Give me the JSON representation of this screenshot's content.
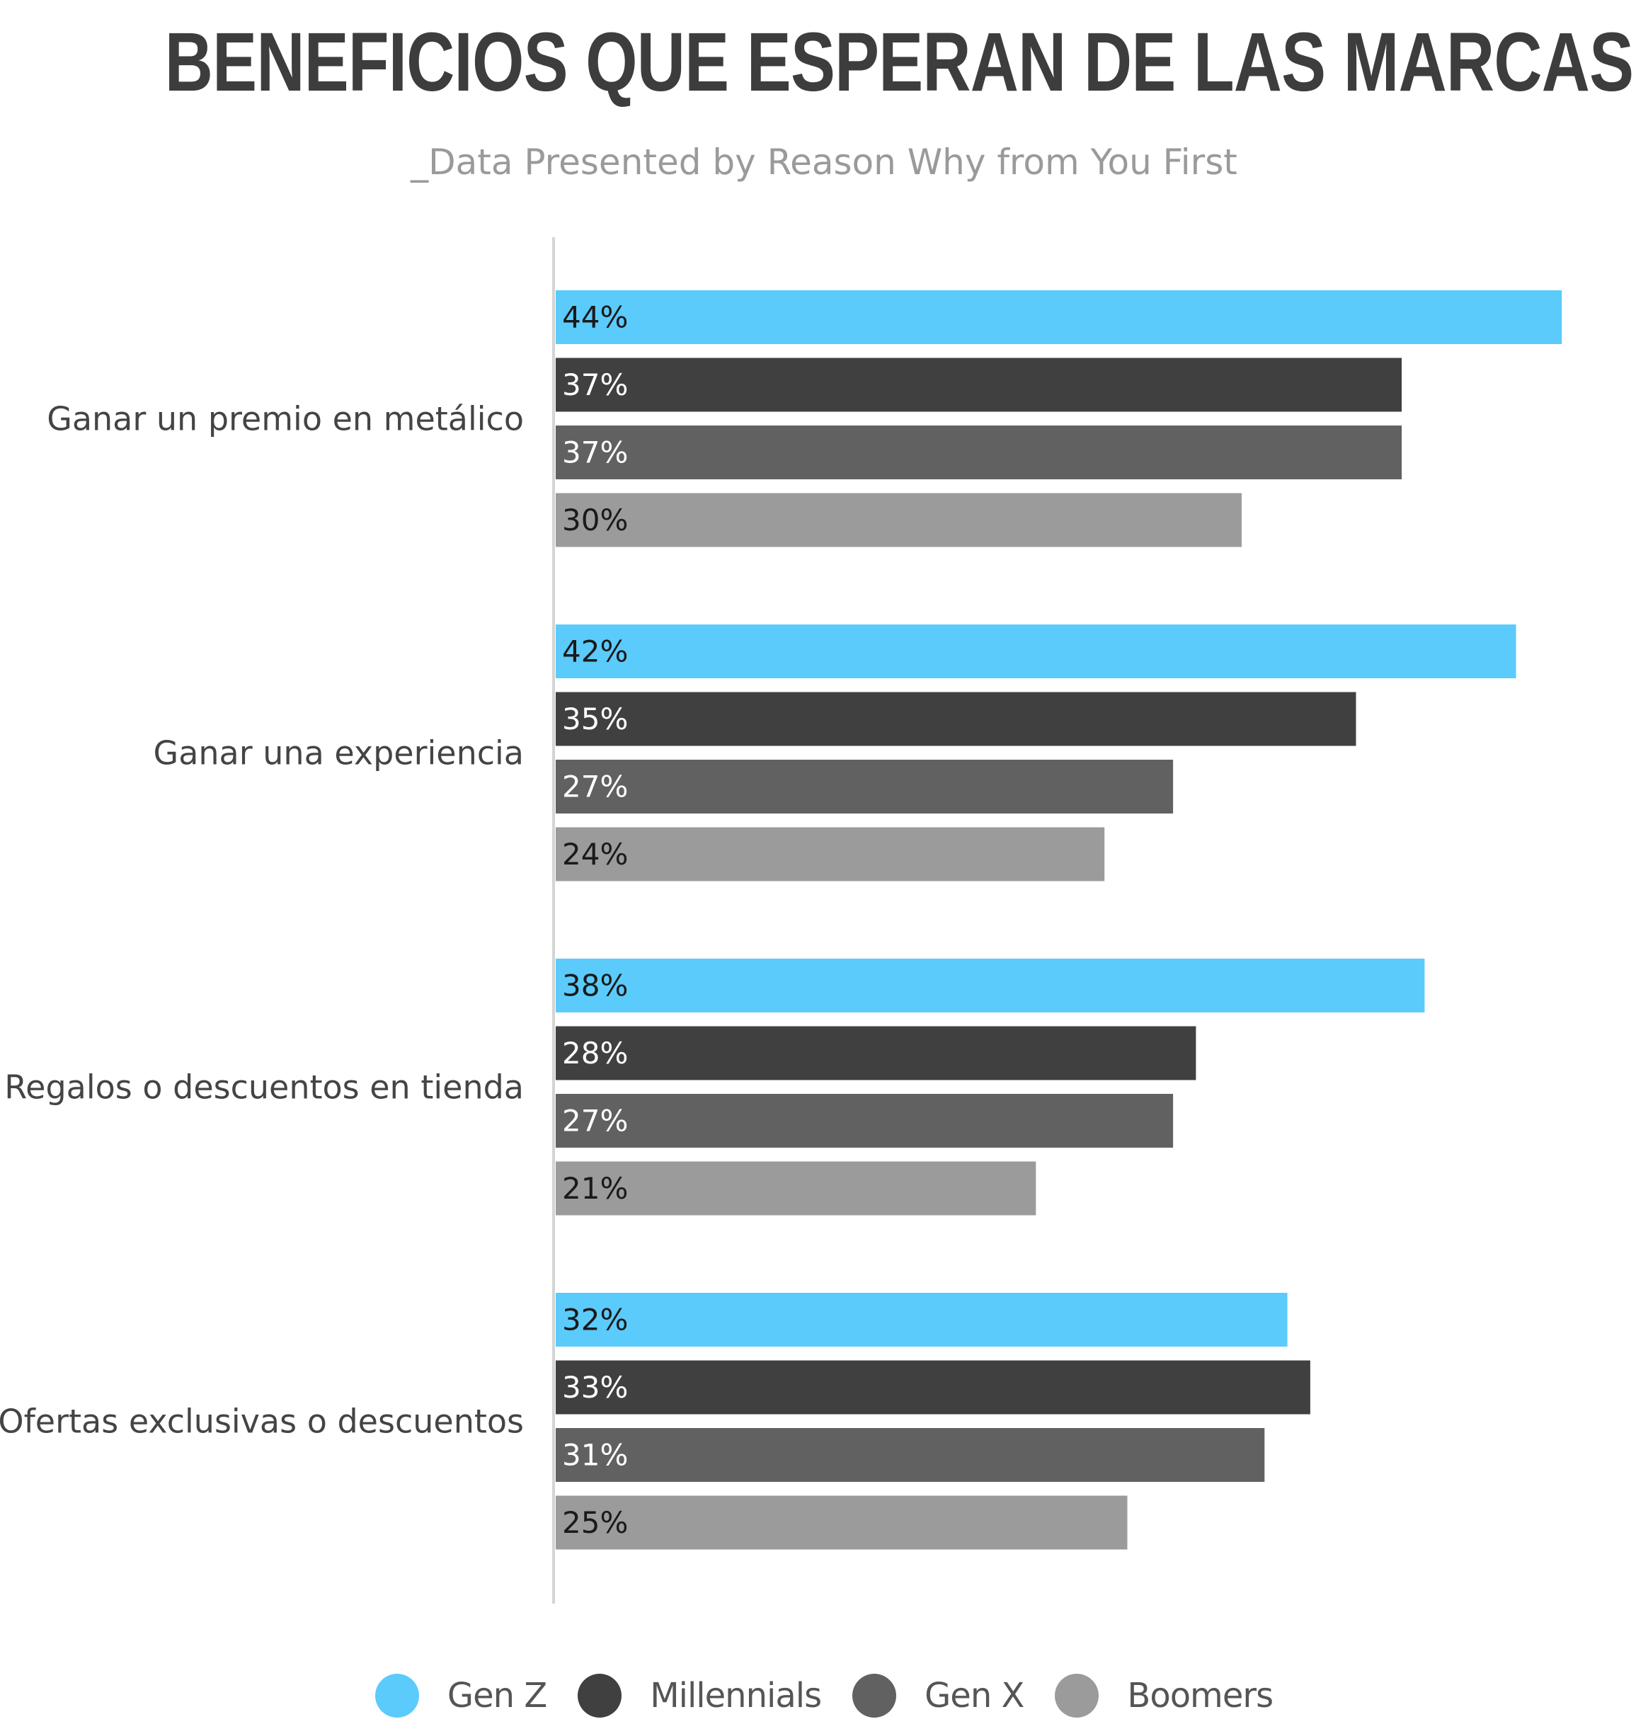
{
  "chart_data": {
    "type": "bar",
    "orientation": "horizontal",
    "title": "BENEFICIOS QUE ESPERAN DE LAS MARCAS",
    "subtitle": "_Data Presented by Reason Why from You First",
    "categories": [
      "Ganar un premio en metálico",
      "Ganar una experiencia",
      "Regalos o descuentos en tienda",
      "Ofertas exclusivas o descuentos"
    ],
    "series": [
      {
        "name": "Gen Z",
        "color": "#5bcbfb",
        "label_color": "#1a1a1a",
        "values": [
          44,
          42,
          38,
          32
        ]
      },
      {
        "name": "Millennials",
        "color": "#404040",
        "label_color": "#ffffff",
        "values": [
          37,
          35,
          28,
          33
        ]
      },
      {
        "name": "Gen X",
        "color": "#616161",
        "label_color": "#ffffff",
        "values": [
          37,
          27,
          27,
          31
        ]
      },
      {
        "name": "Boomers",
        "color": "#9b9b9b",
        "label_color": "#1a1a1a",
        "values": [
          30,
          24,
          21,
          25
        ]
      }
    ],
    "value_suffix": "%",
    "xlim": [
      0,
      45
    ],
    "grid": false,
    "legend_position": "bottom"
  }
}
